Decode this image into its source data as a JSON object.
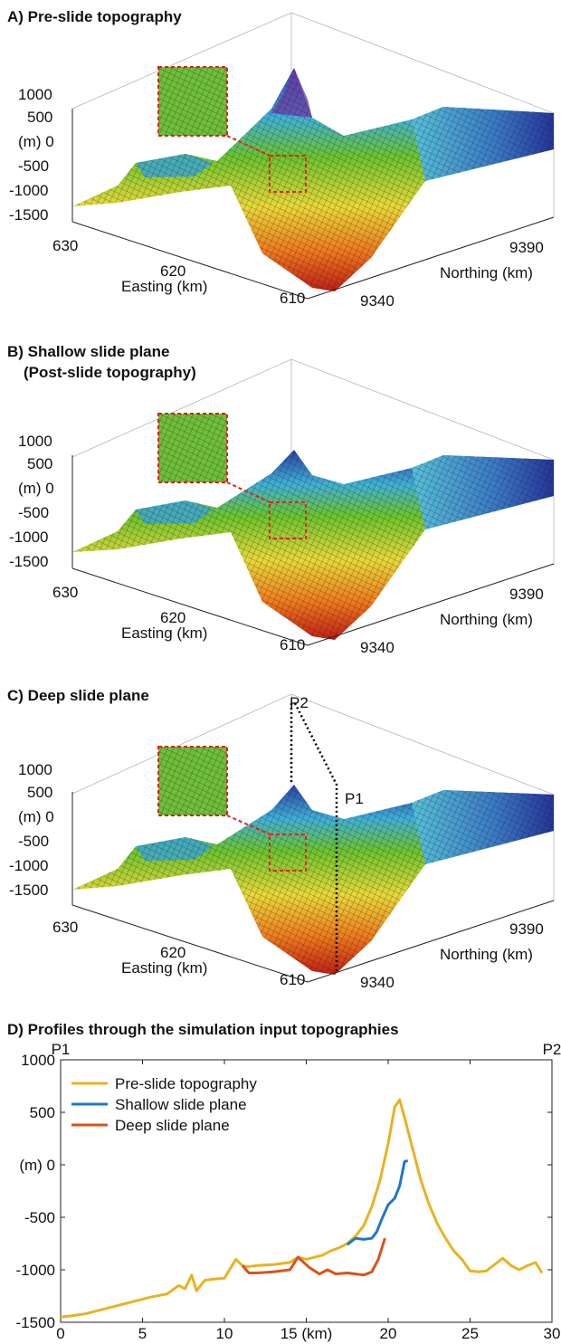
{
  "panels": [
    {
      "title": "A) Pre-slide topography",
      "subtitle": "",
      "z_ticks": [
        "1000",
        "500",
        "(m) 0",
        "-500",
        "-1000",
        "-1500"
      ],
      "easting_ticks": [
        "630",
        "620",
        "610"
      ],
      "easting_label": "Easting (km)",
      "northing_ticks": [
        "9390",
        "9340"
      ],
      "northing_label": "Northing (km)",
      "point_labels": []
    },
    {
      "title": "B) Shallow slide plane",
      "subtitle": "(Post-slide topography)",
      "z_ticks": [
        "1000",
        "500",
        "(m) 0",
        "-500",
        "-1000",
        "-1500"
      ],
      "easting_ticks": [
        "630",
        "620",
        "610"
      ],
      "easting_label": "Easting (km)",
      "northing_ticks": [
        "9390",
        "9340"
      ],
      "northing_label": "Northing (km)",
      "point_labels": []
    },
    {
      "title": "C) Deep slide plane",
      "subtitle": "",
      "z_ticks": [
        "1000",
        "500",
        "(m) 0",
        "-500",
        "-1000",
        "-1500"
      ],
      "easting_ticks": [
        "630",
        "620",
        "610"
      ],
      "easting_label": "Easting (km)",
      "northing_ticks": [
        "9390",
        "9340"
      ],
      "northing_label": "Northing (km)",
      "point_labels": [
        "P2",
        "P1"
      ]
    }
  ],
  "profile": {
    "title": "D) Profiles through the simulation input topographies",
    "start_label": "P1",
    "end_label": "P2",
    "y_unit_label": "(m) 0"
  },
  "colors": {
    "pre_slide": "#e8b321",
    "shallow": "#1f77c9",
    "deep": "#d95319",
    "dotted_marker": "#e3221f"
  },
  "chart_data": [
    {
      "type": "surface",
      "title": "A) Pre-slide topography",
      "zlabel": "(m)",
      "zlim": [
        -1500,
        1000
      ],
      "z_ticks": [
        1000,
        500,
        0,
        -500,
        -1000,
        -1500
      ],
      "xlabel": "Easting (km)",
      "x_ticks": [
        630,
        620,
        610
      ],
      "ylabel": "Northing (km)",
      "y_ticks": [
        9390,
        9340
      ],
      "colormap": "jet-like (red low, green mid, blue high)"
    },
    {
      "type": "surface",
      "title": "B) Shallow slide plane (Post-slide topography)",
      "zlabel": "(m)",
      "zlim": [
        -1500,
        1000
      ],
      "z_ticks": [
        1000,
        500,
        0,
        -500,
        -1000,
        -1500
      ],
      "xlabel": "Easting (km)",
      "x_ticks": [
        630,
        620,
        610
      ],
      "ylabel": "Northing (km)",
      "y_ticks": [
        9390,
        9340
      ]
    },
    {
      "type": "surface",
      "title": "C) Deep slide plane",
      "zlabel": "(m)",
      "zlim": [
        -1500,
        1000
      ],
      "z_ticks": [
        1000,
        500,
        0,
        -500,
        -1000,
        -1500
      ],
      "xlabel": "Easting (km)",
      "x_ticks": [
        630,
        620,
        610
      ],
      "ylabel": "Northing (km)",
      "y_ticks": [
        9390,
        9340
      ],
      "annotations": [
        "P2",
        "P1"
      ]
    },
    {
      "type": "line",
      "title": "D) Profiles through the simulation input topographies",
      "xlabel": "(km)",
      "ylabel": "(m)",
      "xlim": [
        0,
        30
      ],
      "ylim": [
        -1500,
        1000
      ],
      "x_ticks": [
        0,
        5,
        10,
        15,
        20,
        25,
        30
      ],
      "x_tick_labels": [
        "0",
        "5",
        "10",
        "15 (km)",
        "20",
        "25",
        "30"
      ],
      "y_ticks": [
        1000,
        500,
        0,
        -500,
        -1000,
        -1500
      ],
      "y_tick_labels": [
        "1000",
        "500",
        "(m) 0",
        "-500",
        "-1000",
        "-1500"
      ],
      "grid": false,
      "legend": "top-left",
      "series": [
        {
          "name": "Pre-slide topography",
          "color": "#e8b321",
          "x": [
            0,
            0.6,
            1.5,
            2.5,
            3.5,
            4.5,
            5.5,
            6.5,
            7.2,
            7.6,
            8.0,
            8.3,
            8.8,
            9.3,
            10.0,
            10.7,
            11.1,
            11.4,
            12.0,
            13.0,
            14.0,
            14.5,
            15.0,
            16.0,
            16.5,
            17.0,
            17.5,
            18.0,
            18.5,
            19.0,
            19.5,
            20.0,
            20.4,
            20.7,
            21.0,
            21.5,
            22.0,
            22.5,
            23.0,
            23.5,
            24.0,
            24.5,
            25.0,
            25.5,
            26.0,
            26.5,
            27.0,
            27.5,
            28.0,
            28.5,
            29.0,
            29.4
          ],
          "y": [
            -1450,
            -1440,
            -1420,
            -1380,
            -1340,
            -1300,
            -1260,
            -1230,
            -1150,
            -1180,
            -1050,
            -1200,
            -1100,
            -1090,
            -1080,
            -900,
            -960,
            -970,
            -960,
            -950,
            -930,
            -880,
            -900,
            -860,
            -820,
            -790,
            -750,
            -680,
            -580,
            -400,
            -150,
            200,
            550,
            620,
            450,
            150,
            -150,
            -380,
            -560,
            -700,
            -820,
            -900,
            -1010,
            -1020,
            -1010,
            -950,
            -890,
            -960,
            -1000,
            -960,
            -930,
            -1030
          ]
        },
        {
          "name": "Shallow slide plane",
          "color": "#1f77c9",
          "x": [
            17.5,
            18.0,
            18.5,
            19.0,
            19.3,
            19.6,
            20.0,
            20.4,
            20.7,
            21.0,
            21.2
          ],
          "y": [
            -760,
            -700,
            -710,
            -700,
            -640,
            -520,
            -380,
            -320,
            -200,
            30,
            40
          ]
        },
        {
          "name": "Deep slide plane",
          "color": "#d95319",
          "x": [
            11.1,
            11.5,
            12.0,
            13.0,
            14.0,
            14.5,
            15.2,
            15.8,
            16.3,
            16.8,
            17.5,
            18.5,
            19.0,
            19.4,
            19.8
          ],
          "y": [
            -960,
            -1030,
            -1030,
            -1020,
            -1000,
            -880,
            -980,
            -1040,
            -1000,
            -1040,
            -1030,
            -1050,
            -1020,
            -900,
            -700
          ]
        }
      ]
    }
  ]
}
